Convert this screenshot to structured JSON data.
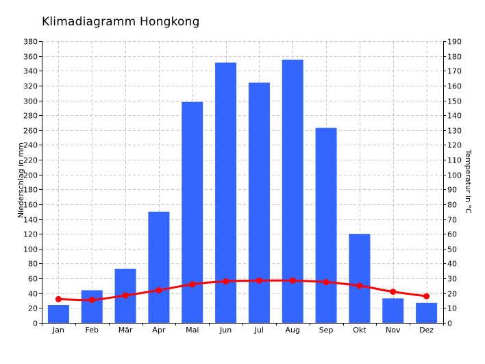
{
  "chart_data": {
    "type": "bar",
    "title": "Klimadiagramm Hongkong",
    "categories": [
      "Jan",
      "Feb",
      "Mär",
      "Apr",
      "Mai",
      "Jun",
      "Jul",
      "Aug",
      "Sep",
      "Okt",
      "Nov",
      "Dez"
    ],
    "series": [
      {
        "type": "bar",
        "axis": "left",
        "color": "#3366ff",
        "values": [
          24,
          44,
          73,
          150,
          298,
          351,
          324,
          355,
          263,
          120,
          33,
          27
        ]
      },
      {
        "type": "line",
        "axis": "right",
        "color": "#ff0000",
        "values": [
          16,
          15.5,
          18.5,
          22,
          26,
          28,
          28.5,
          28.5,
          27.5,
          25,
          21,
          18
        ]
      }
    ],
    "ylabel": "Niederschlag in mm",
    "ylim": [
      0,
      380
    ],
    "y_ticks": [
      0,
      20,
      40,
      60,
      80,
      100,
      120,
      140,
      160,
      180,
      200,
      220,
      240,
      260,
      280,
      300,
      320,
      340,
      360,
      380
    ],
    "y2label": "Temperatur in °C",
    "y2lim": [
      0,
      190
    ],
    "y2_ticks": [
      0,
      10,
      20,
      30,
      40,
      50,
      60,
      70,
      80,
      90,
      100,
      110,
      120,
      130,
      140,
      150,
      160,
      170,
      180,
      190
    ],
    "grid": true,
    "colors": {
      "bars": "#3366ff",
      "line": "#ff0000",
      "grid": "#c8c8c8",
      "axis": "#000000"
    }
  }
}
